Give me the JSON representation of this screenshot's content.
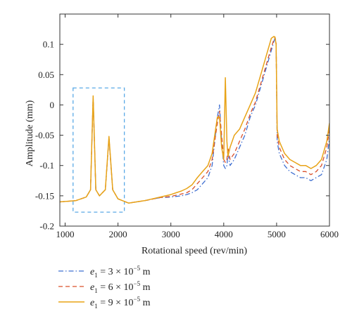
{
  "chart_data": {
    "type": "line",
    "xlabel": "Rotational speed (rev/min)",
    "ylabel": "Amplitude (mm)",
    "xlim": [
      900,
      6000
    ],
    "ylim": [
      -0.2,
      0.15
    ],
    "xticks": [
      1000,
      2000,
      3000,
      4000,
      5000,
      6000
    ],
    "yticks": [
      -0.2,
      -0.15,
      -0.1,
      -0.05,
      0,
      0.05,
      0.1
    ],
    "xtick_labels": [
      "1000",
      "2000",
      "3000",
      "4000",
      "5000",
      "6000"
    ],
    "ytick_labels": [
      "-0.2",
      "-0.15",
      "-0.1",
      "-0.05",
      "0",
      "0.05",
      "0.1"
    ],
    "grid": false,
    "annotations": [
      {
        "type": "dashed-box",
        "color": "#5aa9e6",
        "x_range": [
          1150,
          2120
        ],
        "y_range": [
          -0.177,
          0.028
        ]
      }
    ],
    "series": [
      {
        "name": "e1 = 3 × 10−5 m",
        "legend": {
          "symbol": "e",
          "sub": "1",
          "text": " = 3 × 10",
          "sup": "−5",
          "unit": " m"
        },
        "color": "#3f6fd1",
        "style": "dashdot",
        "x": [
          900,
          1200,
          1400,
          1480,
          1530,
          1580,
          1650,
          1760,
          1830,
          1900,
          2000,
          2200,
          2500,
          2800,
          3000,
          3100,
          3200,
          3300,
          3400,
          3500,
          3600,
          3700,
          3780,
          3830,
          3880,
          3920,
          3960,
          4000,
          4030,
          4060,
          4080,
          4120,
          4160,
          4200,
          4300,
          4400,
          4500,
          4600,
          4700,
          4800,
          4900,
          4950,
          4970,
          4990,
          5010,
          5050,
          5150,
          5250,
          5350,
          5450,
          5550,
          5650,
          5750,
          5850,
          5950,
          6000
        ],
        "y": [
          -0.16,
          -0.158,
          -0.152,
          -0.14,
          0.012,
          -0.14,
          -0.15,
          -0.14,
          -0.055,
          -0.14,
          -0.155,
          -0.162,
          -0.158,
          -0.153,
          -0.152,
          -0.151,
          -0.15,
          -0.148,
          -0.145,
          -0.14,
          -0.13,
          -0.12,
          -0.1,
          -0.06,
          -0.02,
          0.0,
          -0.06,
          -0.1,
          -0.105,
          -0.1,
          -0.08,
          -0.1,
          -0.095,
          -0.09,
          -0.07,
          -0.05,
          -0.02,
          0.0,
          0.03,
          0.06,
          0.09,
          0.105,
          0.11,
          0.1,
          -0.06,
          -0.08,
          -0.1,
          -0.11,
          -0.115,
          -0.12,
          -0.12,
          -0.125,
          -0.12,
          -0.115,
          -0.09,
          -0.055
        ]
      },
      {
        "name": "e1 = 6 × 10−5 m",
        "legend": {
          "symbol": "e",
          "sub": "1",
          "text": " = 6 × 10",
          "sup": "−5",
          "unit": " m"
        },
        "color": "#d9502b",
        "style": "dashed",
        "x": [
          900,
          1200,
          1400,
          1480,
          1530,
          1580,
          1650,
          1760,
          1830,
          1900,
          2000,
          2200,
          2500,
          2800,
          3000,
          3100,
          3200,
          3300,
          3400,
          3500,
          3600,
          3700,
          3780,
          3830,
          3880,
          3920,
          3960,
          4000,
          4030,
          4060,
          4080,
          4120,
          4160,
          4200,
          4300,
          4400,
          4500,
          4600,
          4700,
          4800,
          4900,
          4950,
          4970,
          4990,
          5010,
          5050,
          5150,
          5250,
          5350,
          5450,
          5550,
          5650,
          5750,
          5850,
          5950,
          6000
        ],
        "y": [
          -0.16,
          -0.158,
          -0.152,
          -0.14,
          0.013,
          -0.14,
          -0.15,
          -0.14,
          -0.054,
          -0.14,
          -0.155,
          -0.162,
          -0.158,
          -0.153,
          -0.151,
          -0.149,
          -0.147,
          -0.145,
          -0.14,
          -0.13,
          -0.12,
          -0.11,
          -0.09,
          -0.06,
          -0.03,
          -0.01,
          -0.05,
          -0.09,
          -0.095,
          -0.09,
          -0.07,
          -0.09,
          -0.085,
          -0.08,
          -0.06,
          -0.04,
          -0.015,
          0.005,
          0.035,
          0.065,
          0.095,
          0.108,
          0.112,
          0.104,
          -0.05,
          -0.07,
          -0.09,
          -0.1,
          -0.105,
          -0.11,
          -0.11,
          -0.115,
          -0.11,
          -0.1,
          -0.07,
          -0.04
        ]
      },
      {
        "name": "e1 = 9 × 10−5 m",
        "legend": {
          "symbol": "e",
          "sub": "1",
          "text": " = 9 × 10",
          "sup": "−5",
          "unit": " m"
        },
        "color": "#e8a317",
        "style": "solid",
        "x": [
          900,
          1200,
          1400,
          1480,
          1530,
          1580,
          1650,
          1760,
          1830,
          1900,
          2000,
          2200,
          2500,
          2800,
          3000,
          3100,
          3200,
          3300,
          3400,
          3500,
          3600,
          3700,
          3780,
          3830,
          3880,
          3920,
          3960,
          4000,
          4030,
          4060,
          4080,
          4120,
          4160,
          4200,
          4300,
          4400,
          4500,
          4600,
          4700,
          4800,
          4900,
          4950,
          4970,
          4990,
          5010,
          5050,
          5150,
          5250,
          5350,
          5450,
          5550,
          5650,
          5750,
          5850,
          5950,
          6000
        ],
        "y": [
          -0.16,
          -0.158,
          -0.152,
          -0.14,
          0.015,
          -0.14,
          -0.15,
          -0.14,
          -0.052,
          -0.14,
          -0.155,
          -0.162,
          -0.158,
          -0.152,
          -0.148,
          -0.145,
          -0.142,
          -0.138,
          -0.132,
          -0.12,
          -0.11,
          -0.1,
          -0.08,
          -0.05,
          -0.02,
          -0.02,
          -0.07,
          -0.09,
          0.045,
          -0.06,
          -0.085,
          -0.07,
          -0.06,
          -0.05,
          -0.04,
          -0.02,
          0.0,
          0.02,
          0.05,
          0.08,
          0.11,
          0.113,
          0.112,
          0.1,
          -0.04,
          -0.06,
          -0.08,
          -0.09,
          -0.095,
          -0.1,
          -0.1,
          -0.105,
          -0.1,
          -0.09,
          -0.06,
          -0.03
        ]
      }
    ]
  }
}
